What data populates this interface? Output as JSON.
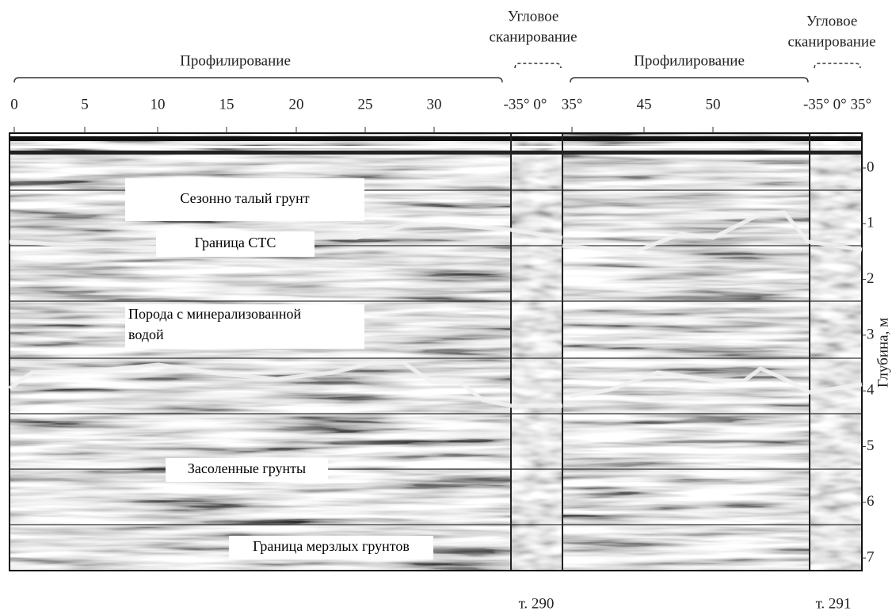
{
  "top_labels": {
    "profiling_1": "Профилирование",
    "angular_1": [
      "Угловое",
      "сканирование"
    ],
    "profiling_2": "Профилирование",
    "angular_2": [
      "Угловое",
      "сканирование"
    ]
  },
  "x_ticks": [
    "0",
    "5",
    "10",
    "15",
    "20",
    "25",
    "30",
    "-35° 0°",
    "35°",
    "45",
    "50",
    "-35° 0° 35°"
  ],
  "depth_ticks": [
    "0",
    "1",
    "2",
    "3",
    "4",
    "5",
    "6",
    "7"
  ],
  "depth_axis_label": "Глубина, м",
  "annotations": [
    [
      "Сезонно талый грунт"
    ],
    [
      "Граница СТС"
    ],
    [
      "Порода с минерализованной",
      "водой"
    ],
    [
      "Засоленные грунты"
    ],
    [
      "Граница мерзлых грунтов"
    ]
  ],
  "points": [
    "т. 290",
    "т. 291"
  ]
}
